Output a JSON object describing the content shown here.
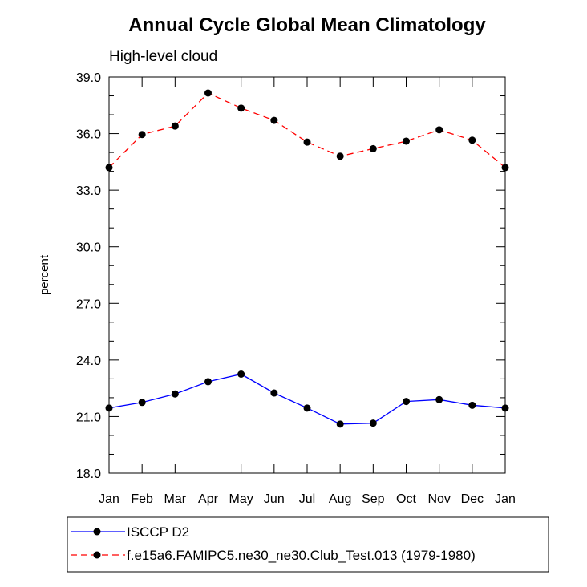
{
  "chart_data": {
    "type": "line",
    "title": "Annual Cycle Global Mean Climatology",
    "subtitle": "High-level cloud",
    "xlabel": "",
    "ylabel": "percent",
    "ylim": [
      18.0,
      39.0
    ],
    "yticks": [
      "18.0",
      "21.0",
      "24.0",
      "27.0",
      "30.0",
      "33.0",
      "36.0",
      "39.0"
    ],
    "yminor_step": 1.0,
    "categories": [
      "Jan",
      "Feb",
      "Mar",
      "Apr",
      "May",
      "Jun",
      "Jul",
      "Aug",
      "Sep",
      "Oct",
      "Nov",
      "Dec",
      "Jan"
    ],
    "grid": false,
    "legend_position": "bottom",
    "series": [
      {
        "name": "ISCCP D2",
        "color": "#0000ff",
        "style": "solid",
        "values": [
          21.45,
          21.75,
          22.2,
          22.85,
          23.25,
          22.25,
          21.45,
          20.6,
          20.65,
          21.8,
          21.9,
          21.6,
          21.45
        ]
      },
      {
        "name": "f.e15a6.FAMIPC5.ne30_ne30.Club_Test.013 (1979-1980)",
        "color": "#ff0000",
        "style": "dashed",
        "values": [
          34.2,
          35.95,
          36.4,
          38.15,
          37.35,
          36.7,
          35.55,
          34.8,
          35.2,
          35.6,
          36.2,
          35.65,
          34.2
        ]
      }
    ]
  }
}
